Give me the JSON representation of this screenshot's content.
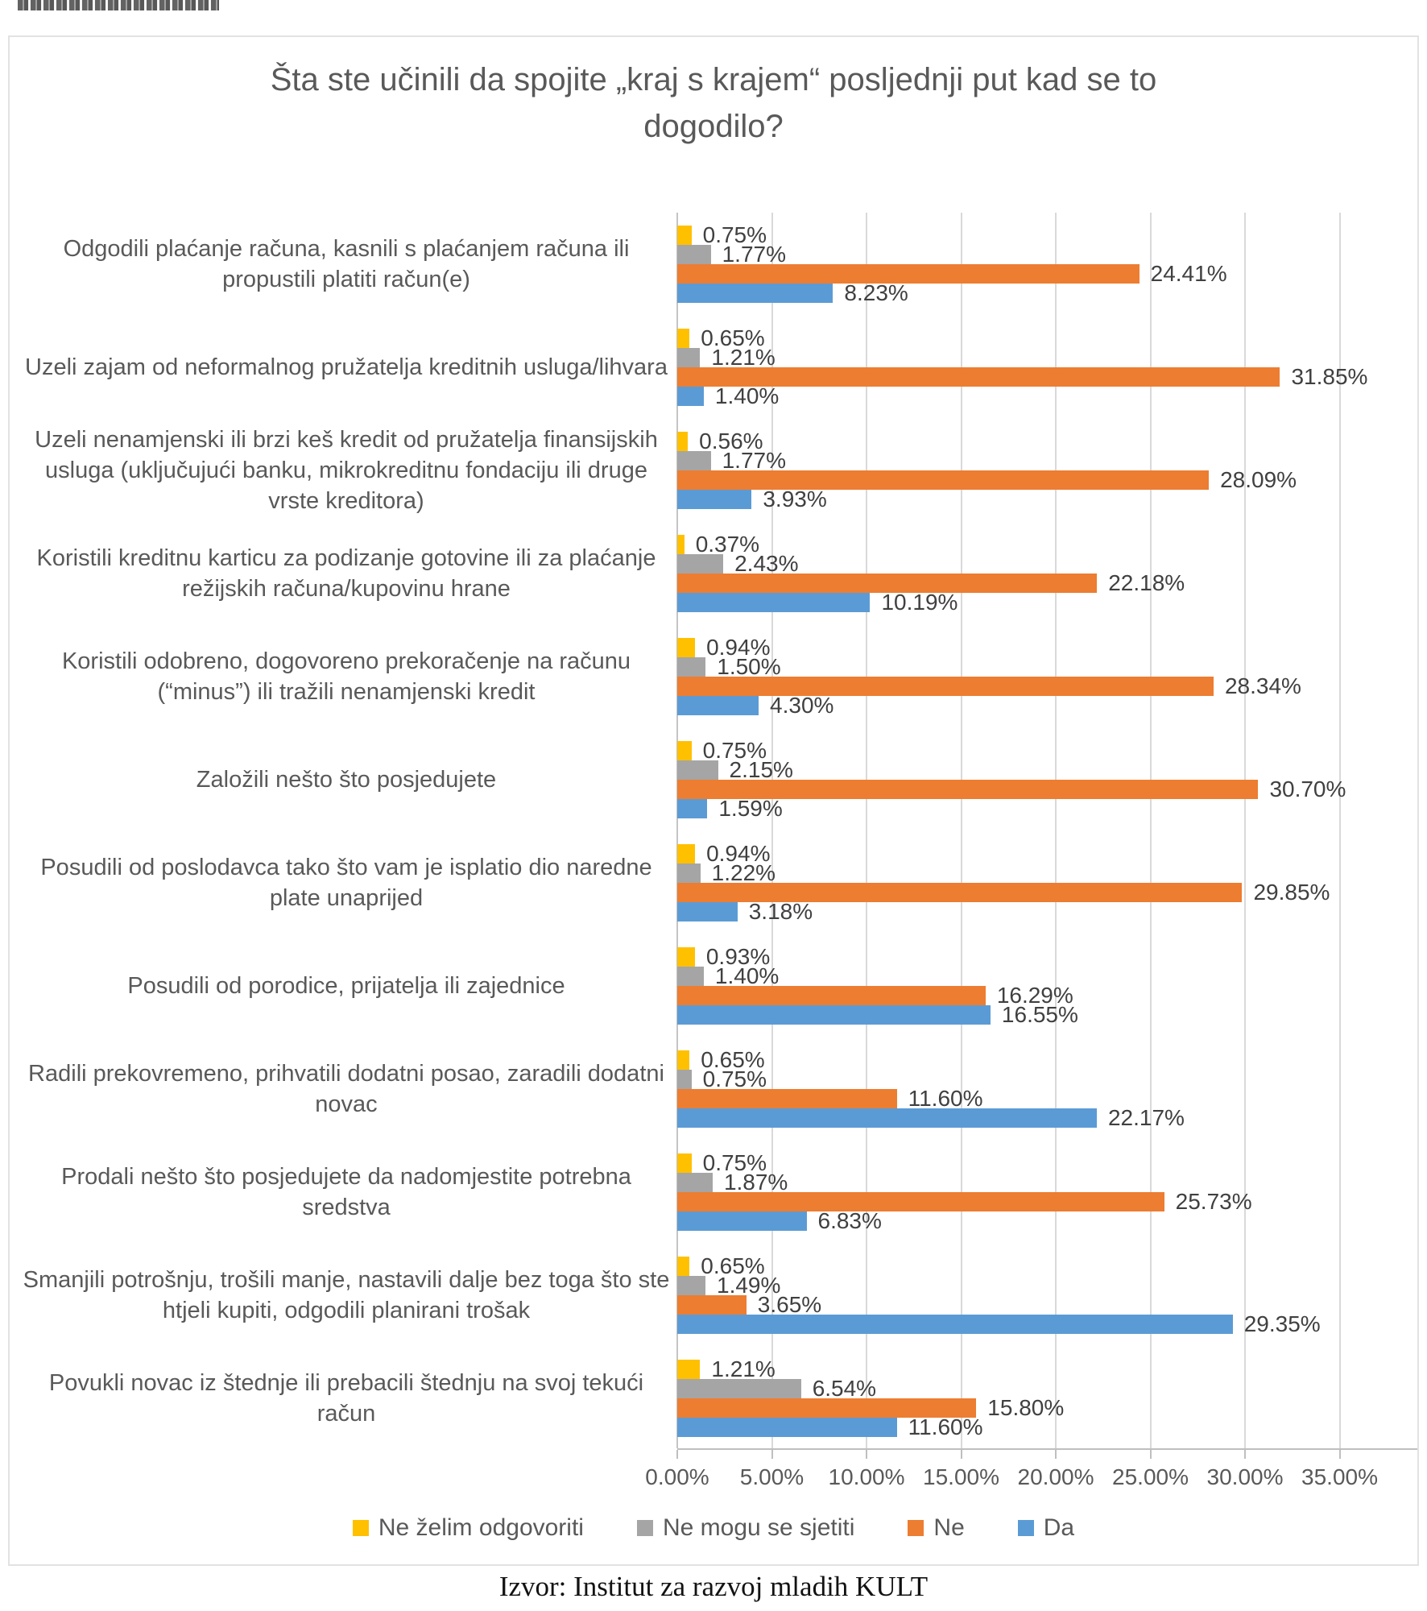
{
  "source_caption": "Izvor: Institut za razvoj mladih KULT",
  "colors": {
    "refuse": "#FFC000",
    "cannot_remember": "#A5A5A5",
    "no": "#ED7D31",
    "yes": "#5B9BD5",
    "gridline": "#D9D9D9",
    "text": "#595959",
    "data_label": "#404040"
  },
  "chart_data": {
    "type": "bar",
    "orientation": "horizontal",
    "title": "Šta ste učinili da spojite „kraj s krajem“ posljednji put kad se to dogodilo?",
    "categories": [
      "Odgodili plaćanje računa, kasnili s plaćanjem računa ili propustili platiti račun(e)",
      "Uzeli zajam od neformalnog pružatelja kreditnih usluga/lihvara",
      "Uzeli nenamjenski ili brzi keš kredit od pružatelja finansijskih usluga (uključujući banku, mikrokreditnu fondaciju ili druge vrste kreditora)",
      "Koristili kreditnu karticu za podizanje gotovine ili za plaćanje režijskih računa/kupovinu hrane",
      "Koristili odobreno, dogovoreno prekoračenje na računu (“minus”) ili tražili nenamjenski kredit",
      "Založili nešto što posjedujete",
      "Posudili od poslodavca tako što vam je isplatio dio naredne plate unaprijed",
      "Posudili od porodice, prijatelja ili zajednice",
      "Radili prekovremeno, prihvatili dodatni posao, zaradili dodatni novac",
      "Prodali nešto što posjedujete da nadomjestite potrebna sredstva",
      "Smanjili potrošnju, trošili manje, nastavili dalje bez toga što ste htjeli kupiti, odgodili planirani trošak",
      "Povukli novac iz štednje ili prebacili štednju na svoj tekući račun"
    ],
    "series": [
      {
        "key": "ne-zelim-odgovoriti",
        "name": "Ne želim odgovoriti",
        "color": "#FFC000",
        "values": [
          0.75,
          0.65,
          0.56,
          0.37,
          0.94,
          0.75,
          0.94,
          0.93,
          0.65,
          0.75,
          0.65,
          1.21
        ]
      },
      {
        "key": "ne-mogu-se-sjetiti",
        "name": "Ne mogu se sjetiti",
        "color": "#A5A5A5",
        "values": [
          1.77,
          1.21,
          1.77,
          2.43,
          1.5,
          2.15,
          1.22,
          1.4,
          0.75,
          1.87,
          1.49,
          6.54
        ]
      },
      {
        "key": "ne",
        "name": "Ne",
        "color": "#ED7D31",
        "values": [
          24.41,
          31.85,
          28.09,
          22.18,
          28.34,
          30.7,
          29.85,
          16.29,
          11.6,
          25.73,
          3.65,
          15.8
        ]
      },
      {
        "key": "da",
        "name": "Da",
        "color": "#5B9BD5",
        "values": [
          8.23,
          1.4,
          3.93,
          10.19,
          4.3,
          1.59,
          3.18,
          16.55,
          22.17,
          6.83,
          29.35,
          11.6
        ]
      }
    ],
    "xlim": [
      0,
      35
    ],
    "x_tick_labels": [
      "0.00%",
      "5.00%",
      "10.00%",
      "15.00%",
      "20.00%",
      "25.00%",
      "30.00%",
      "35.00%"
    ],
    "grid": true,
    "legend_position": "bottom",
    "data_labels": "percent, 2 decimals, right of bar"
  }
}
